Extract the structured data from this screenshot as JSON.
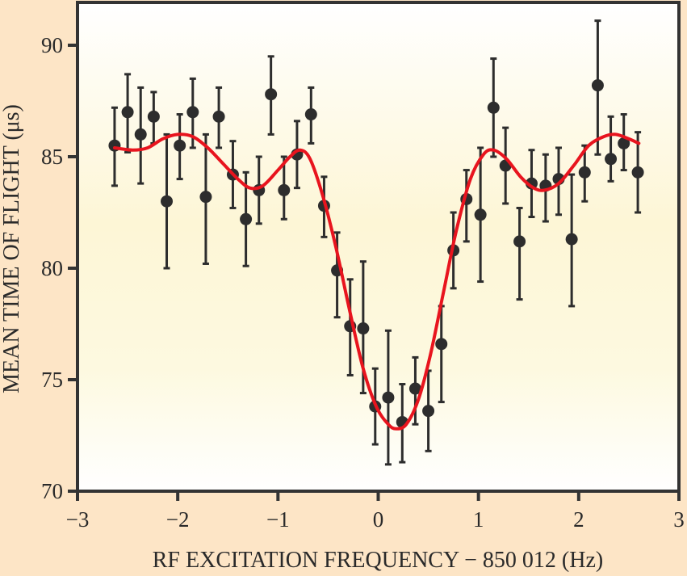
{
  "chart_data": {
    "type": "scatter",
    "title": "",
    "xlabel": "RF EXCITATION FREQUENCY − 850 012 (Hz)",
    "ylabel": "MEAN TIME OF FLIGHT (μs)",
    "xlim": [
      -3,
      3
    ],
    "ylim": [
      70,
      92
    ],
    "x_ticks": [
      -3,
      -2,
      -1,
      0,
      1,
      2,
      3
    ],
    "x_tick_labels": [
      "−3",
      "−2",
      "−1",
      "0",
      "1",
      "2",
      "3"
    ],
    "y_ticks": [
      70,
      75,
      80,
      85,
      90
    ],
    "y_tick_labels": [
      "70",
      "75",
      "80",
      "85",
      "90"
    ],
    "grid": false,
    "legend": "none",
    "colors": {
      "background": "#fde5c6",
      "plot_top": "#ffffff",
      "plot_mid": "#fdf8d8",
      "points": "#2d2d2d",
      "fit": "#e8141e",
      "axes": "#333333"
    },
    "series": [
      {
        "name": "measurements",
        "kind": "errorbar",
        "points": [
          {
            "x": -2.63,
            "y": 85.5,
            "ylo": 83.7,
            "yhi": 87.2
          },
          {
            "x": -2.5,
            "y": 87.0,
            "ylo": 85.2,
            "yhi": 88.7
          },
          {
            "x": -2.37,
            "y": 86.0,
            "ylo": 83.8,
            "yhi": 88.1
          },
          {
            "x": -2.24,
            "y": 86.8,
            "ylo": 85.6,
            "yhi": 87.9
          },
          {
            "x": -2.11,
            "y": 83.0,
            "ylo": 80.0,
            "yhi": 86.0
          },
          {
            "x": -1.98,
            "y": 85.5,
            "ylo": 84.0,
            "yhi": 86.9
          },
          {
            "x": -1.85,
            "y": 87.0,
            "ylo": 85.4,
            "yhi": 88.5
          },
          {
            "x": -1.72,
            "y": 83.2,
            "ylo": 80.2,
            "yhi": 86.0
          },
          {
            "x": -1.59,
            "y": 86.8,
            "ylo": 85.4,
            "yhi": 88.1
          },
          {
            "x": -1.45,
            "y": 84.2,
            "ylo": 82.7,
            "yhi": 85.7
          },
          {
            "x": -1.32,
            "y": 82.2,
            "ylo": 80.1,
            "yhi": 84.3
          },
          {
            "x": -1.19,
            "y": 83.5,
            "ylo": 82.0,
            "yhi": 85.0
          },
          {
            "x": -1.07,
            "y": 87.8,
            "ylo": 86.0,
            "yhi": 89.5
          },
          {
            "x": -0.94,
            "y": 83.5,
            "ylo": 82.2,
            "yhi": 85.0
          },
          {
            "x": -0.81,
            "y": 85.1,
            "ylo": 83.6,
            "yhi": 86.6
          },
          {
            "x": -0.67,
            "y": 86.9,
            "ylo": 85.6,
            "yhi": 88.1
          },
          {
            "x": -0.54,
            "y": 82.8,
            "ylo": 81.4,
            "yhi": 84.1
          },
          {
            "x": -0.41,
            "y": 79.9,
            "ylo": 77.8,
            "yhi": 81.6
          },
          {
            "x": -0.28,
            "y": 77.4,
            "ylo": 75.2,
            "yhi": 79.5
          },
          {
            "x": -0.15,
            "y": 77.3,
            "ylo": 74.4,
            "yhi": 80.3
          },
          {
            "x": -0.03,
            "y": 73.8,
            "ylo": 72.1,
            "yhi": 75.5
          },
          {
            "x": 0.1,
            "y": 74.2,
            "ylo": 71.2,
            "yhi": 77.2
          },
          {
            "x": 0.24,
            "y": 73.1,
            "ylo": 71.3,
            "yhi": 74.8
          },
          {
            "x": 0.37,
            "y": 74.6,
            "ylo": 73.0,
            "yhi": 76.0
          },
          {
            "x": 0.5,
            "y": 73.6,
            "ylo": 71.8,
            "yhi": 75.4
          },
          {
            "x": 0.63,
            "y": 76.6,
            "ylo": 74.0,
            "yhi": 78.3
          },
          {
            "x": 0.75,
            "y": 80.8,
            "ylo": 79.1,
            "yhi": 82.5
          },
          {
            "x": 0.88,
            "y": 83.1,
            "ylo": 81.2,
            "yhi": 84.4
          },
          {
            "x": 1.02,
            "y": 82.4,
            "ylo": 79.4,
            "yhi": 85.4
          },
          {
            "x": 1.15,
            "y": 87.2,
            "ylo": 85.0,
            "yhi": 89.4
          },
          {
            "x": 1.27,
            "y": 84.6,
            "ylo": 82.9,
            "yhi": 86.3
          },
          {
            "x": 1.41,
            "y": 81.2,
            "ylo": 78.6,
            "yhi": 82.7
          },
          {
            "x": 1.53,
            "y": 83.8,
            "ylo": 82.3,
            "yhi": 85.3
          },
          {
            "x": 1.67,
            "y": 83.7,
            "ylo": 82.1,
            "yhi": 85.1
          },
          {
            "x": 1.8,
            "y": 84.0,
            "ylo": 82.4,
            "yhi": 85.4
          },
          {
            "x": 1.93,
            "y": 81.3,
            "ylo": 78.3,
            "yhi": 84.2
          },
          {
            "x": 2.06,
            "y": 84.3,
            "ylo": 83.0,
            "yhi": 85.5
          },
          {
            "x": 2.19,
            "y": 88.2,
            "ylo": 85.1,
            "yhi": 91.1
          },
          {
            "x": 2.32,
            "y": 84.9,
            "ylo": 83.9,
            "yhi": 86.8
          },
          {
            "x": 2.45,
            "y": 85.6,
            "ylo": 84.4,
            "yhi": 86.9
          },
          {
            "x": 2.59,
            "y": 84.3,
            "ylo": 82.5,
            "yhi": 86.1
          }
        ]
      },
      {
        "name": "fit",
        "kind": "line",
        "x": [
          -2.63,
          -2.45,
          -2.3,
          -2.15,
          -2.0,
          -1.85,
          -1.7,
          -1.55,
          -1.4,
          -1.28,
          -1.15,
          -1.0,
          -0.88,
          -0.78,
          -0.68,
          -0.55,
          -0.42,
          -0.28,
          -0.15,
          -0.02,
          0.1,
          0.18,
          0.28,
          0.4,
          0.52,
          0.65,
          0.78,
          0.92,
          1.05,
          1.15,
          1.28,
          1.42,
          1.55,
          1.66,
          1.8,
          1.95,
          2.1,
          2.25,
          2.37,
          2.5,
          2.6
        ],
        "y": [
          85.4,
          85.3,
          85.4,
          85.8,
          86.0,
          85.9,
          85.4,
          84.7,
          84.0,
          83.6,
          83.7,
          84.4,
          85.0,
          85.3,
          84.9,
          83.2,
          80.9,
          78.0,
          75.5,
          73.8,
          73.0,
          72.8,
          73.0,
          74.1,
          76.1,
          78.9,
          81.7,
          84.0,
          85.1,
          85.3,
          84.9,
          84.1,
          83.6,
          83.5,
          83.8,
          84.6,
          85.5,
          85.9,
          86.0,
          85.8,
          85.6
        ]
      }
    ]
  }
}
